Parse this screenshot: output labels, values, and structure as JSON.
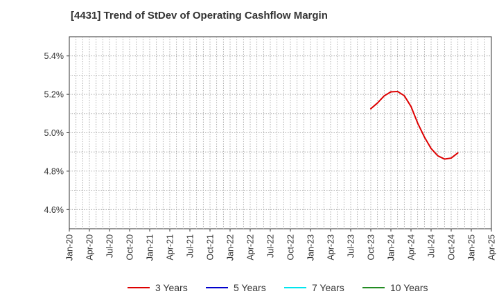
{
  "chart_data": {
    "type": "line",
    "title": "[4431]  Trend of StDev of Operating Cashflow Margin",
    "xlabel": "",
    "ylabel": "",
    "x_ticks": [
      "Jan-20",
      "Apr-20",
      "Jul-20",
      "Oct-20",
      "Jan-21",
      "Apr-21",
      "Jul-21",
      "Oct-21",
      "Jan-22",
      "Apr-22",
      "Jul-22",
      "Oct-22",
      "Jan-23",
      "Apr-23",
      "Jul-23",
      "Oct-23",
      "Jan-24",
      "Apr-24",
      "Jul-24",
      "Oct-24",
      "Jan-25",
      "Apr-25"
    ],
    "y_ticks": [
      "4.6%",
      "4.8%",
      "5.0%",
      "5.2%",
      "5.4%"
    ],
    "ylim": [
      4.5,
      5.5
    ],
    "grid": true,
    "legend_position": "bottom",
    "series": [
      {
        "name": "3 Years",
        "color": "#dd0000",
        "points": [
          {
            "x": "Oct-23",
            "y": 5.125
          },
          {
            "x": "Nov-23",
            "y": 5.155
          },
          {
            "x": "Dec-23",
            "y": 5.192
          },
          {
            "x": "Jan-24",
            "y": 5.213
          },
          {
            "x": "Feb-24",
            "y": 5.215
          },
          {
            "x": "Mar-24",
            "y": 5.193
          },
          {
            "x": "Apr-24",
            "y": 5.137
          },
          {
            "x": "May-24",
            "y": 5.05
          },
          {
            "x": "Jun-24",
            "y": 4.978
          },
          {
            "x": "Jul-24",
            "y": 4.918
          },
          {
            "x": "Aug-24",
            "y": 4.88
          },
          {
            "x": "Sep-24",
            "y": 4.863
          },
          {
            "x": "Oct-24",
            "y": 4.868
          },
          {
            "x": "Nov-24",
            "y": 4.895
          }
        ]
      },
      {
        "name": "5 Years",
        "color": "#0000cc",
        "points": []
      },
      {
        "name": "7 Years",
        "color": "#00e5ee",
        "points": []
      },
      {
        "name": "10 Years",
        "color": "#228b22",
        "points": []
      }
    ]
  }
}
